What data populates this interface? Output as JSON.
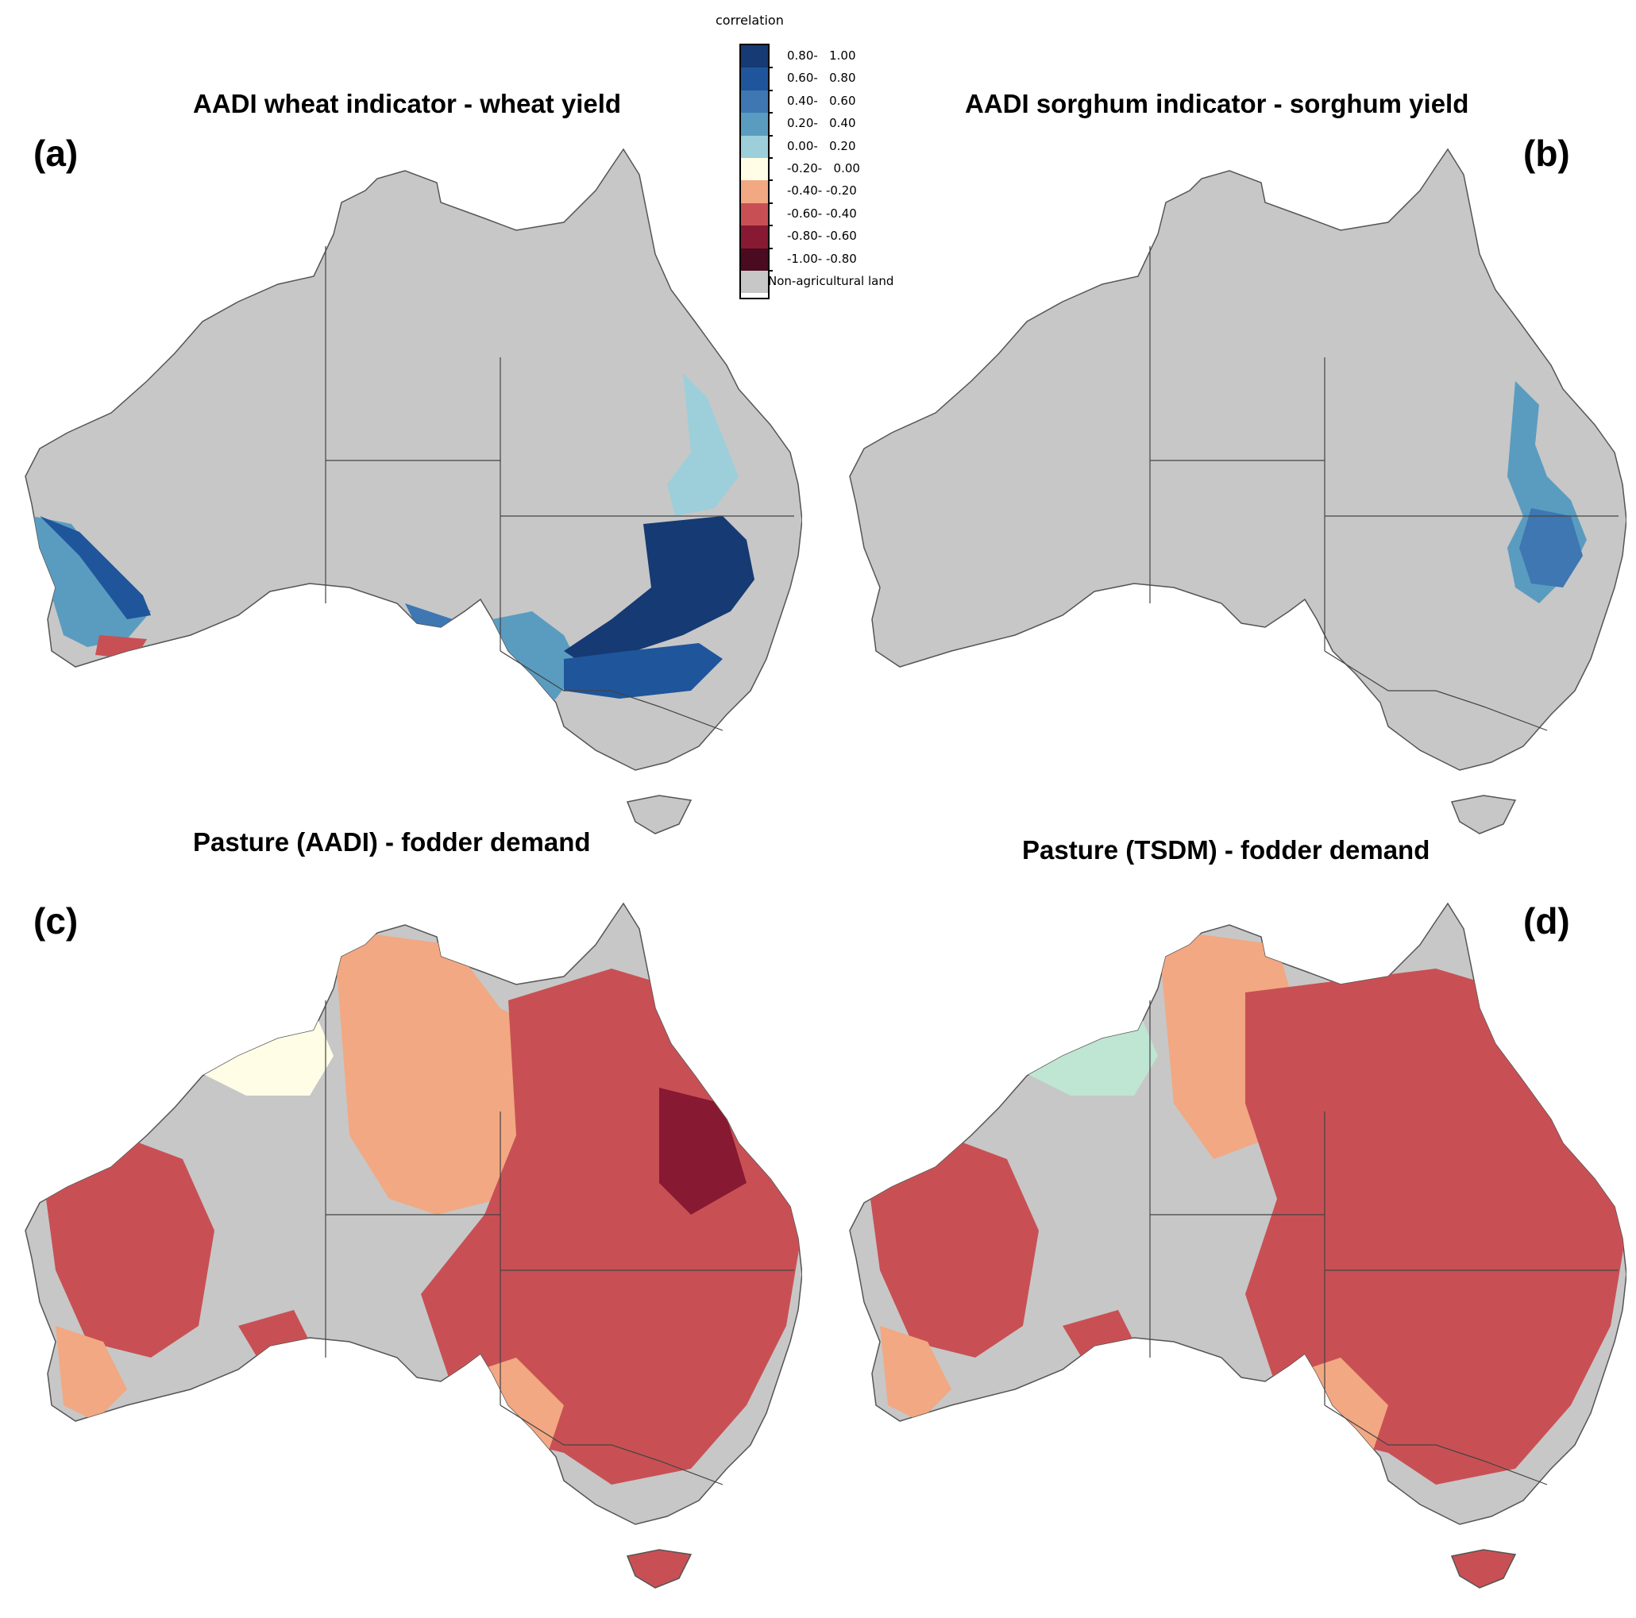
{
  "figure": {
    "panels": [
      {
        "letter": "(a)",
        "title": "AADI wheat indicator - wheat yield"
      },
      {
        "letter": "(b)",
        "title": "AADI sorghum indicator - sorghum yield"
      },
      {
        "letter": "(c)",
        "title": "Pasture (AADI) - fodder demand"
      },
      {
        "letter": "(d)",
        "title": "Pasture (TSDM) - fodder demand"
      }
    ]
  },
  "legend": {
    "title": "correlation",
    "classes": [
      {
        "label": "0.80-   1.00",
        "color": "#163a73"
      },
      {
        "label": "0.60-   0.80",
        "color": "#1f559b"
      },
      {
        "label": "0.40-   0.60",
        "color": "#3e77b2"
      },
      {
        "label": "0.20-   0.40",
        "color": "#5a9cc0"
      },
      {
        "label": "0.00-   0.20",
        "color": "#9ccfda"
      },
      {
        "label": "-0.20-   0.00",
        "color": "#fffde6"
      },
      {
        "label": "-0.40- -0.20",
        "color": "#f2a882"
      },
      {
        "label": "-0.60- -0.40",
        "color": "#c85054"
      },
      {
        "label": "-0.80- -0.60",
        "color": "#871a32"
      },
      {
        "label": "-1.00- -0.80",
        "color": "#4a0a1f"
      },
      {
        "label": "Non-agricultural land",
        "color": "#c7c7c7"
      }
    ]
  },
  "colors": {
    "land": "#c7c7c7",
    "border": "#444444",
    "pale_green": "#bfe5d3"
  }
}
